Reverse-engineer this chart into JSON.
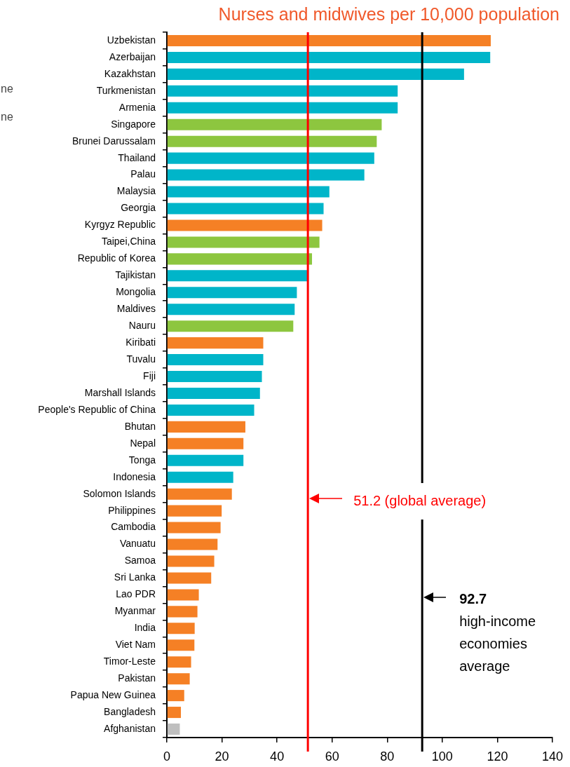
{
  "chart_data": {
    "type": "bar",
    "orientation": "horizontal",
    "title": "Nurses and midwives per 10,000 population",
    "categories": [
      "Uzbekistan",
      "Azerbaijan",
      "Kazakhstan",
      "Turkmenistan",
      "Armenia",
      "Singapore",
      "Brunei Darussalam",
      "Thailand",
      "Palau",
      "Malaysia",
      "Georgia",
      "Kyrgyz Republic",
      "Taipei,China",
      "Republic of Korea",
      "Tajikistan",
      "Mongolia",
      "Maldives",
      "Nauru",
      "Kiribati",
      "Tuvalu",
      "Fiji",
      "Marshall Islands",
      "People's Republic of China",
      "Bhutan",
      "Nepal",
      "Tonga",
      "Indonesia",
      "Solomon Islands",
      "Philippines",
      "Cambodia",
      "Vanuatu",
      "Samoa",
      "Sri Lanka",
      "Lao PDR",
      "Myanmar",
      "India",
      "Viet Nam",
      "Timor-Leste",
      "Pakistan",
      "Papua New Guinea",
      "Bangladesh",
      "Afghanistan"
    ],
    "values": [
      117.6,
      117.4,
      107.9,
      83.8,
      83.8,
      78.0,
      76.2,
      75.3,
      71.7,
      59.0,
      56.9,
      56.4,
      55.4,
      52.7,
      51.0,
      47.2,
      46.4,
      45.9,
      35.0,
      35.0,
      34.5,
      33.8,
      31.7,
      28.5,
      27.8,
      27.8,
      24.1,
      23.6,
      19.9,
      19.5,
      18.4,
      17.2,
      16.1,
      11.6,
      11.1,
      10.1,
      10.0,
      8.8,
      8.3,
      6.3,
      5.1,
      4.7
    ],
    "colors": [
      "#f58025",
      "#00b5c9",
      "#00b5c9",
      "#00b5c9",
      "#00b5c9",
      "#8dc63f",
      "#8dc63f",
      "#00b5c9",
      "#00b5c9",
      "#00b5c9",
      "#00b5c9",
      "#f58025",
      "#8dc63f",
      "#8dc63f",
      "#00b5c9",
      "#00b5c9",
      "#00b5c9",
      "#8dc63f",
      "#f58025",
      "#00b5c9",
      "#00b5c9",
      "#00b5c9",
      "#00b5c9",
      "#f58025",
      "#f58025",
      "#00b5c9",
      "#00b5c9",
      "#f58025",
      "#f58025",
      "#f58025",
      "#f58025",
      "#f58025",
      "#f58025",
      "#f58025",
      "#f58025",
      "#f58025",
      "#f58025",
      "#f58025",
      "#f58025",
      "#f58025",
      "#f58025",
      "#bfbfbf"
    ],
    "xlim": [
      0,
      140
    ],
    "xticks": [
      0,
      20,
      40,
      60,
      80,
      100,
      120,
      140
    ],
    "grid": false,
    "ref_lines": [
      {
        "axis": "x",
        "value": 51.2,
        "label": "51.2 (global average)",
        "color": "#ff0000",
        "line_style": "solid"
      },
      {
        "axis": "x",
        "value": 92.7,
        "label": "92.7 high-income economies average",
        "color": "#000000",
        "line_style": "solid"
      }
    ],
    "annotations": [
      "ne",
      "ne"
    ]
  }
}
